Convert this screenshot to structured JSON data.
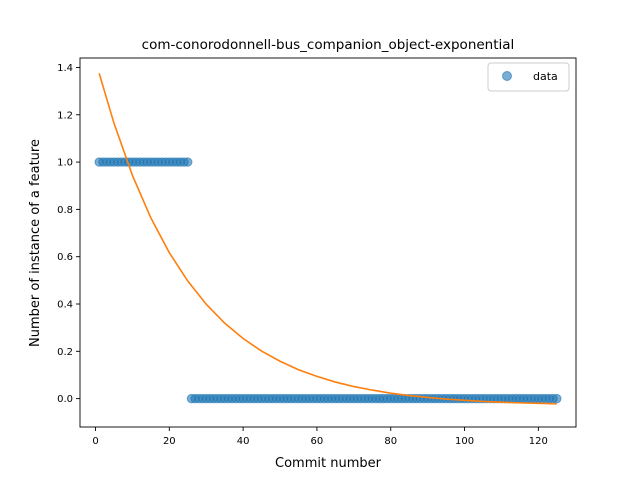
{
  "chart_data": {
    "type": "scatter",
    "title": "com-conorodonnell-bus_companion_object-exponential",
    "xlabel": "Commit number",
    "ylabel": "Number of instance of a feature",
    "xlim": [
      -4.2,
      130.2
    ],
    "ylim": [
      -0.12,
      1.44
    ],
    "xticks": [
      0,
      20,
      40,
      60,
      80,
      100,
      120
    ],
    "yticks": [
      0.0,
      0.2,
      0.4,
      0.6,
      0.8,
      1.0,
      1.2,
      1.4
    ],
    "legend_position": "top-right",
    "series": [
      {
        "name": "data",
        "kind": "scatter",
        "color": "#1f77b4",
        "points": [
          [
            1,
            1
          ],
          [
            2,
            1
          ],
          [
            3,
            1
          ],
          [
            4,
            1
          ],
          [
            5,
            1
          ],
          [
            6,
            1
          ],
          [
            7,
            1
          ],
          [
            8,
            1
          ],
          [
            9,
            1
          ],
          [
            10,
            1
          ],
          [
            11,
            1
          ],
          [
            12,
            1
          ],
          [
            13,
            1
          ],
          [
            14,
            1
          ],
          [
            15,
            1
          ],
          [
            16,
            1
          ],
          [
            17,
            1
          ],
          [
            18,
            1
          ],
          [
            19,
            1
          ],
          [
            20,
            1
          ],
          [
            21,
            1
          ],
          [
            22,
            1
          ],
          [
            23,
            1
          ],
          [
            24,
            1
          ],
          [
            25,
            1
          ],
          [
            26,
            0
          ],
          [
            27,
            0
          ],
          [
            28,
            0
          ],
          [
            29,
            0
          ],
          [
            30,
            0
          ],
          [
            31,
            0
          ],
          [
            32,
            0
          ],
          [
            33,
            0
          ],
          [
            34,
            0
          ],
          [
            35,
            0
          ],
          [
            36,
            0
          ],
          [
            37,
            0
          ],
          [
            38,
            0
          ],
          [
            39,
            0
          ],
          [
            40,
            0
          ],
          [
            41,
            0
          ],
          [
            42,
            0
          ],
          [
            43,
            0
          ],
          [
            44,
            0
          ],
          [
            45,
            0
          ],
          [
            46,
            0
          ],
          [
            47,
            0
          ],
          [
            48,
            0
          ],
          [
            49,
            0
          ],
          [
            50,
            0
          ],
          [
            51,
            0
          ],
          [
            52,
            0
          ],
          [
            53,
            0
          ],
          [
            54,
            0
          ],
          [
            55,
            0
          ],
          [
            56,
            0
          ],
          [
            57,
            0
          ],
          [
            58,
            0
          ],
          [
            59,
            0
          ],
          [
            60,
            0
          ],
          [
            61,
            0
          ],
          [
            62,
            0
          ],
          [
            63,
            0
          ],
          [
            64,
            0
          ],
          [
            65,
            0
          ],
          [
            66,
            0
          ],
          [
            67,
            0
          ],
          [
            68,
            0
          ],
          [
            69,
            0
          ],
          [
            70,
            0
          ],
          [
            71,
            0
          ],
          [
            72,
            0
          ],
          [
            73,
            0
          ],
          [
            74,
            0
          ],
          [
            75,
            0
          ],
          [
            76,
            0
          ],
          [
            77,
            0
          ],
          [
            78,
            0
          ],
          [
            79,
            0
          ],
          [
            80,
            0
          ],
          [
            81,
            0
          ],
          [
            82,
            0
          ],
          [
            83,
            0
          ],
          [
            84,
            0
          ],
          [
            85,
            0
          ],
          [
            86,
            0
          ],
          [
            87,
            0
          ],
          [
            88,
            0
          ],
          [
            89,
            0
          ],
          [
            90,
            0
          ],
          [
            91,
            0
          ],
          [
            92,
            0
          ],
          [
            93,
            0
          ],
          [
            94,
            0
          ],
          [
            95,
            0
          ],
          [
            96,
            0
          ],
          [
            97,
            0
          ],
          [
            98,
            0
          ],
          [
            99,
            0
          ],
          [
            100,
            0
          ],
          [
            101,
            0
          ],
          [
            102,
            0
          ],
          [
            103,
            0
          ],
          [
            104,
            0
          ],
          [
            105,
            0
          ],
          [
            106,
            0
          ],
          [
            107,
            0
          ],
          [
            108,
            0
          ],
          [
            109,
            0
          ],
          [
            110,
            0
          ],
          [
            111,
            0
          ],
          [
            112,
            0
          ],
          [
            113,
            0
          ],
          [
            114,
            0
          ],
          [
            115,
            0
          ],
          [
            116,
            0
          ],
          [
            117,
            0
          ],
          [
            118,
            0
          ],
          [
            119,
            0
          ],
          [
            120,
            0
          ],
          [
            121,
            0
          ],
          [
            122,
            0
          ],
          [
            123,
            0
          ],
          [
            124,
            0
          ],
          [
            125,
            0
          ]
        ]
      },
      {
        "kind": "line",
        "color": "#ff7f0e",
        "points": [
          [
            1,
            1.375
          ],
          [
            5,
            1.165
          ],
          [
            10,
            0.944
          ],
          [
            15,
            0.764
          ],
          [
            20,
            0.617
          ],
          [
            25,
            0.497
          ],
          [
            30,
            0.399
          ],
          [
            35,
            0.319
          ],
          [
            40,
            0.254
          ],
          [
            45,
            0.201
          ],
          [
            50,
            0.158
          ],
          [
            55,
            0.122
          ],
          [
            60,
            0.094
          ],
          [
            65,
            0.07
          ],
          [
            70,
            0.051
          ],
          [
            75,
            0.036
          ],
          [
            80,
            0.023
          ],
          [
            85,
            0.013
          ],
          [
            90,
            0.005
          ],
          [
            95,
            -0.002
          ],
          [
            100,
            -0.007
          ],
          [
            105,
            -0.012
          ],
          [
            110,
            -0.015
          ],
          [
            115,
            -0.018
          ],
          [
            120,
            -0.02
          ],
          [
            125,
            -0.022
          ]
        ]
      }
    ]
  }
}
